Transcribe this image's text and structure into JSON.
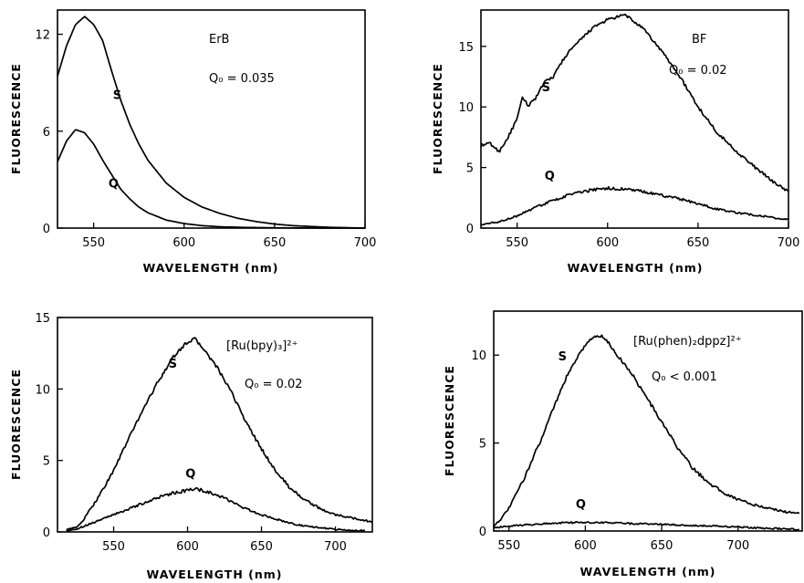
{
  "figure": {
    "chart_data": [
      {
        "type": "line",
        "xlabel": "WAVELENGTH (nm)",
        "ylabel": "FLUORESCENCE",
        "xlim": [
          530,
          700
        ],
        "ylim": [
          0,
          13.5
        ],
        "xticks": [
          550,
          600,
          650,
          700
        ],
        "yticks": [
          0,
          6,
          12
        ],
        "x_tick_labels": [
          "550",
          "600",
          "650",
          "700"
        ],
        "y_tick_labels": [
          "0",
          "6",
          "12"
        ],
        "annotations": {
          "compound": "ErB",
          "qo": "Q₀ = 0.035"
        },
        "noise": 0.0,
        "series": [
          {
            "name": "S",
            "x": [
              530,
              535,
              540,
              545,
              550,
              555,
              560,
              565,
              570,
              575,
              580,
              590,
              600,
              610,
              620,
              630,
              640,
              650,
              660,
              680,
              700
            ],
            "y": [
              9.4,
              11.3,
              12.6,
              13.1,
              12.6,
              11.6,
              9.7,
              7.9,
              6.4,
              5.2,
              4.2,
              2.8,
              1.9,
              1.3,
              0.9,
              0.6,
              0.4,
              0.25,
              0.15,
              0.05,
              0.0
            ]
          },
          {
            "name": "Q",
            "x": [
              530,
              535,
              540,
              545,
              550,
              555,
              560,
              565,
              570,
              575,
              580,
              590,
              600,
              610,
              620,
              630,
              640,
              650,
              660,
              680,
              700
            ],
            "y": [
              4.1,
              5.4,
              6.1,
              5.9,
              5.2,
              4.2,
              3.3,
              2.4,
              1.8,
              1.3,
              0.95,
              0.5,
              0.28,
              0.15,
              0.08,
              0.05,
              0.03,
              0.02,
              0.01,
              0.0,
              0.0
            ]
          }
        ],
        "series_label_positions": [
          {
            "text": "S",
            "x": 563,
            "y": 8.0
          },
          {
            "text": "Q",
            "x": 561,
            "y": 2.5
          }
        ]
      },
      {
        "type": "line",
        "xlabel": "WAVELENGTH (nm)",
        "ylabel": "FLUORESCENCE",
        "xlim": [
          530,
          700
        ],
        "ylim": [
          0,
          18
        ],
        "xticks": [
          550,
          600,
          650,
          700
        ],
        "yticks": [
          0,
          5,
          10,
          15
        ],
        "x_tick_labels": [
          "550",
          "600",
          "650",
          "700"
        ],
        "y_tick_labels": [
          "0",
          "5",
          "10",
          "15"
        ],
        "annotations": {
          "compound": "BF",
          "qo": "Q₀ = 0.02"
        },
        "noise": 0.25,
        "series": [
          {
            "name": "S",
            "x": [
              530,
              535,
              540,
              545,
              550,
              553,
              556,
              560,
              565,
              570,
              575,
              580,
              585,
              590,
              595,
              600,
              605,
              610,
              615,
              620,
              625,
              630,
              640,
              650,
              660,
              670,
              680,
              690,
              700
            ],
            "y": [
              6.8,
              7.0,
              6.3,
              7.5,
              9.0,
              10.8,
              10.1,
              10.7,
              12.0,
              12.5,
              13.8,
              14.8,
              15.5,
              16.3,
              16.8,
              17.2,
              17.4,
              17.6,
              17.0,
              16.4,
              15.5,
              14.6,
              12.5,
              10.0,
              8.0,
              6.5,
              5.2,
              4.0,
              3.0
            ]
          },
          {
            "name": "Q",
            "x": [
              530,
              540,
              550,
              560,
              570,
              580,
              590,
              600,
              610,
              620,
              630,
              640,
              650,
              660,
              670,
              680,
              690,
              700
            ],
            "y": [
              0.3,
              0.5,
              1.0,
              1.7,
              2.3,
              2.8,
              3.1,
              3.3,
              3.2,
              3.0,
              2.7,
              2.4,
              2.0,
              1.6,
              1.3,
              1.1,
              0.9,
              0.7
            ]
          }
        ],
        "series_label_positions": [
          {
            "text": "S",
            "x": 566,
            "y": 11.3
          },
          {
            "text": "Q",
            "x": 568,
            "y": 4.0
          }
        ]
      },
      {
        "type": "line",
        "xlabel": "WAVELENGTH (nm)",
        "ylabel": "FLUORESCENCE",
        "xlim": [
          512,
          725
        ],
        "ylim": [
          0,
          15
        ],
        "xticks": [
          550,
          600,
          650,
          700
        ],
        "yticks": [
          0,
          5,
          10,
          15
        ],
        "x_tick_labels": [
          "550",
          "600",
          "650",
          "700"
        ],
        "y_tick_labels": [
          "0",
          "5",
          "10",
          "15"
        ],
        "annotations": {
          "compound": "[Ru(bpy)₃]²⁺",
          "qo": "Q₀ = 0.02"
        },
        "noise": 0.22,
        "series": [
          {
            "name": "S",
            "x": [
              518,
              525,
              530,
              540,
              550,
              560,
              570,
              580,
              590,
              600,
              605,
              610,
              620,
              630,
              640,
              650,
              660,
              670,
              680,
              690,
              700,
              710,
              720,
              725
            ],
            "y": [
              0.2,
              0.3,
              0.9,
              2.5,
              4.3,
              6.5,
              8.6,
              10.5,
              12.2,
              13.3,
              13.5,
              12.9,
              11.5,
              9.7,
              7.6,
              5.8,
              4.2,
              3.0,
              2.2,
              1.6,
              1.2,
              1.0,
              0.8,
              0.7
            ]
          },
          {
            "name": "Q",
            "x": [
              518,
              525,
              530,
              540,
              550,
              560,
              570,
              580,
              590,
              600,
              605,
              610,
              620,
              630,
              640,
              650,
              660,
              670,
              680,
              690,
              700,
              710,
              720
            ],
            "y": [
              0.1,
              0.2,
              0.4,
              0.8,
              1.2,
              1.6,
              2.0,
              2.4,
              2.7,
              2.9,
              3.0,
              2.9,
              2.6,
              2.1,
              1.6,
              1.2,
              0.9,
              0.6,
              0.4,
              0.3,
              0.2,
              0.1,
              0.1
            ]
          }
        ],
        "series_label_positions": [
          {
            "text": "S",
            "x": 590,
            "y": 11.5
          },
          {
            "text": "Q",
            "x": 602,
            "y": 3.8
          }
        ]
      },
      {
        "type": "line",
        "xlabel": "WAVELENGTH (nm)",
        "ylabel": "FLUORESCENCE",
        "xlim": [
          540,
          742
        ],
        "ylim": [
          0,
          12.5
        ],
        "xticks": [
          550,
          600,
          650,
          700
        ],
        "yticks": [
          0,
          5,
          10
        ],
        "x_tick_labels": [
          "550",
          "600",
          "650",
          "700"
        ],
        "y_tick_labels": [
          "0",
          "5",
          "10"
        ],
        "annotations": {
          "compound": "[Ru(phen)₂dppz]²⁺",
          "qo": "Q₀ < 0.001"
        },
        "noise": 0.2,
        "series": [
          {
            "name": "S",
            "x": [
              540,
              545,
              550,
              560,
              570,
              580,
              590,
              600,
              605,
              610,
              615,
              620,
              630,
              640,
              650,
              660,
              670,
              680,
              690,
              700,
              710,
              720,
              730,
              740
            ],
            "y": [
              0.3,
              0.7,
              1.3,
              3.0,
              5.0,
              7.2,
              9.2,
              10.6,
              11.0,
              11.1,
              10.7,
              10.1,
              9.0,
              7.6,
              6.2,
              4.8,
              3.6,
              2.8,
              2.2,
              1.8,
              1.5,
              1.3,
              1.1,
              1.0
            ]
          },
          {
            "name": "Q",
            "x": [
              540,
              560,
              580,
              600,
              620,
              640,
              660,
              680,
              700,
              720,
              740
            ],
            "y": [
              0.2,
              0.35,
              0.45,
              0.5,
              0.45,
              0.4,
              0.35,
              0.3,
              0.22,
              0.15,
              0.1
            ]
          }
        ],
        "series_label_positions": [
          {
            "text": "S",
            "x": 585,
            "y": 9.7
          },
          {
            "text": "Q",
            "x": 597,
            "y": 1.3
          }
        ]
      }
    ]
  }
}
